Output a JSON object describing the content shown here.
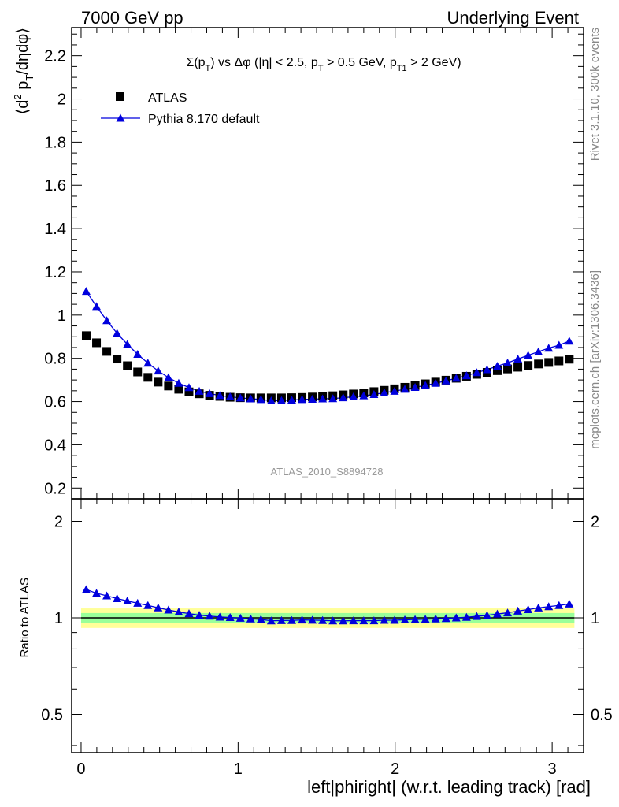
{
  "header": {
    "left": "7000 GeV pp",
    "right": "Underlying Event"
  },
  "side": {
    "top": "Rivet 3.1.10,  300k events",
    "bottom": "mcplots.cern.ch [arXiv:1306.3436]"
  },
  "chart_data": {
    "type": "scatter",
    "title": "Σ(p_T) vs Δφ (|η| < 2.5, p_T > 0.5 GeV, p_T1 > 2 GeV)",
    "title_parts": [
      "Σ(p",
      "T",
      ") vs Δφ (|η| < 2.5, p",
      "T",
      " > 0.5 GeV, p",
      "T1",
      " > 2 GeV)"
    ],
    "analysis_id": "ATLAS_2010_S8894728",
    "xlabel": "left|phiright| (w.r.t. leading track) [rad]",
    "ylabel_main": "⟨d² p_T/dηdφ⟩",
    "ylabel_parts": [
      "⟨d",
      "2",
      " p",
      "T",
      "/dηdφ⟩"
    ],
    "ylabel_ratio": "Ratio to ATLAS",
    "xlim": [
      -0.06,
      3.2
    ],
    "ylim_main": [
      0.15,
      2.33
    ],
    "ylim_ratio": [
      0.38,
      2.35
    ],
    "ratio_log_scale": true,
    "x_ticks": [
      "0",
      "1",
      "2",
      "3"
    ],
    "y_ticks_main": [
      "0.2",
      "0.4",
      "0.6",
      "0.8",
      "1",
      "1.2",
      "1.4",
      "1.6",
      "1.8",
      "2",
      "2.2"
    ],
    "y_ticks_ratio": [
      "0.5",
      "1",
      "2"
    ],
    "legend_position": "top-left",
    "colors": {
      "atlas": "#000000",
      "pythia": "#0000dd",
      "band_inner": "#99ff99",
      "band_outer": "#ffff99"
    },
    "x": [
      0.0327,
      0.0982,
      0.1636,
      0.2291,
      0.2945,
      0.36,
      0.4254,
      0.4909,
      0.5563,
      0.6218,
      0.6872,
      0.7527,
      0.8181,
      0.8836,
      0.949,
      1.0145,
      1.0799,
      1.1454,
      1.2108,
      1.2763,
      1.3417,
      1.4072,
      1.4726,
      1.5381,
      1.6035,
      1.669,
      1.7344,
      1.7999,
      1.8653,
      1.9308,
      1.9962,
      2.0617,
      2.1271,
      2.1926,
      2.258,
      2.3235,
      2.3889,
      2.4544,
      2.5198,
      2.5853,
      2.6507,
      2.7162,
      2.7816,
      2.8471,
      2.9125,
      2.978,
      3.0434,
      3.1089
    ],
    "series": [
      {
        "name": "ATLAS",
        "marker": "square",
        "values": [
          0.905,
          0.872,
          0.832,
          0.797,
          0.766,
          0.737,
          0.712,
          0.69,
          0.672,
          0.657,
          0.645,
          0.636,
          0.629,
          0.624,
          0.62,
          0.618,
          0.617,
          0.617,
          0.617,
          0.617,
          0.618,
          0.619,
          0.621,
          0.624,
          0.627,
          0.631,
          0.635,
          0.64,
          0.646,
          0.652,
          0.659,
          0.666,
          0.674,
          0.682,
          0.69,
          0.699,
          0.708,
          0.717,
          0.726,
          0.735,
          0.743,
          0.751,
          0.759,
          0.767,
          0.774,
          0.781,
          0.788,
          0.796
        ]
      },
      {
        "name": "Pythia 8.170 default",
        "marker": "triangle",
        "values": [
          1.11,
          1.04,
          0.975,
          0.916,
          0.865,
          0.819,
          0.778,
          0.742,
          0.711,
          0.685,
          0.665,
          0.648,
          0.637,
          0.628,
          0.622,
          0.617,
          0.613,
          0.61,
          0.604,
          0.605,
          0.607,
          0.61,
          0.611,
          0.613,
          0.614,
          0.618,
          0.622,
          0.627,
          0.633,
          0.641,
          0.648,
          0.657,
          0.666,
          0.675,
          0.685,
          0.696,
          0.708,
          0.72,
          0.734,
          0.748,
          0.764,
          0.779,
          0.797,
          0.814,
          0.831,
          0.847,
          0.861,
          0.88
        ]
      }
    ],
    "ratio": [
      1.226,
      1.193,
      1.172,
      1.149,
      1.129,
      1.111,
      1.093,
      1.075,
      1.058,
      1.043,
      1.031,
      1.019,
      1.013,
      1.006,
      1.003,
      0.998,
      0.993,
      0.989,
      0.979,
      0.981,
      0.982,
      0.985,
      0.984,
      0.982,
      0.979,
      0.979,
      0.98,
      0.98,
      0.98,
      0.983,
      0.983,
      0.986,
      0.988,
      0.99,
      0.993,
      0.996,
      1.0,
      1.004,
      1.011,
      1.018,
      1.028,
      1.037,
      1.05,
      1.061,
      1.074,
      1.084,
      1.093,
      1.105
    ],
    "band_inner_frac": 0.035,
    "band_outer_frac": 0.07
  }
}
